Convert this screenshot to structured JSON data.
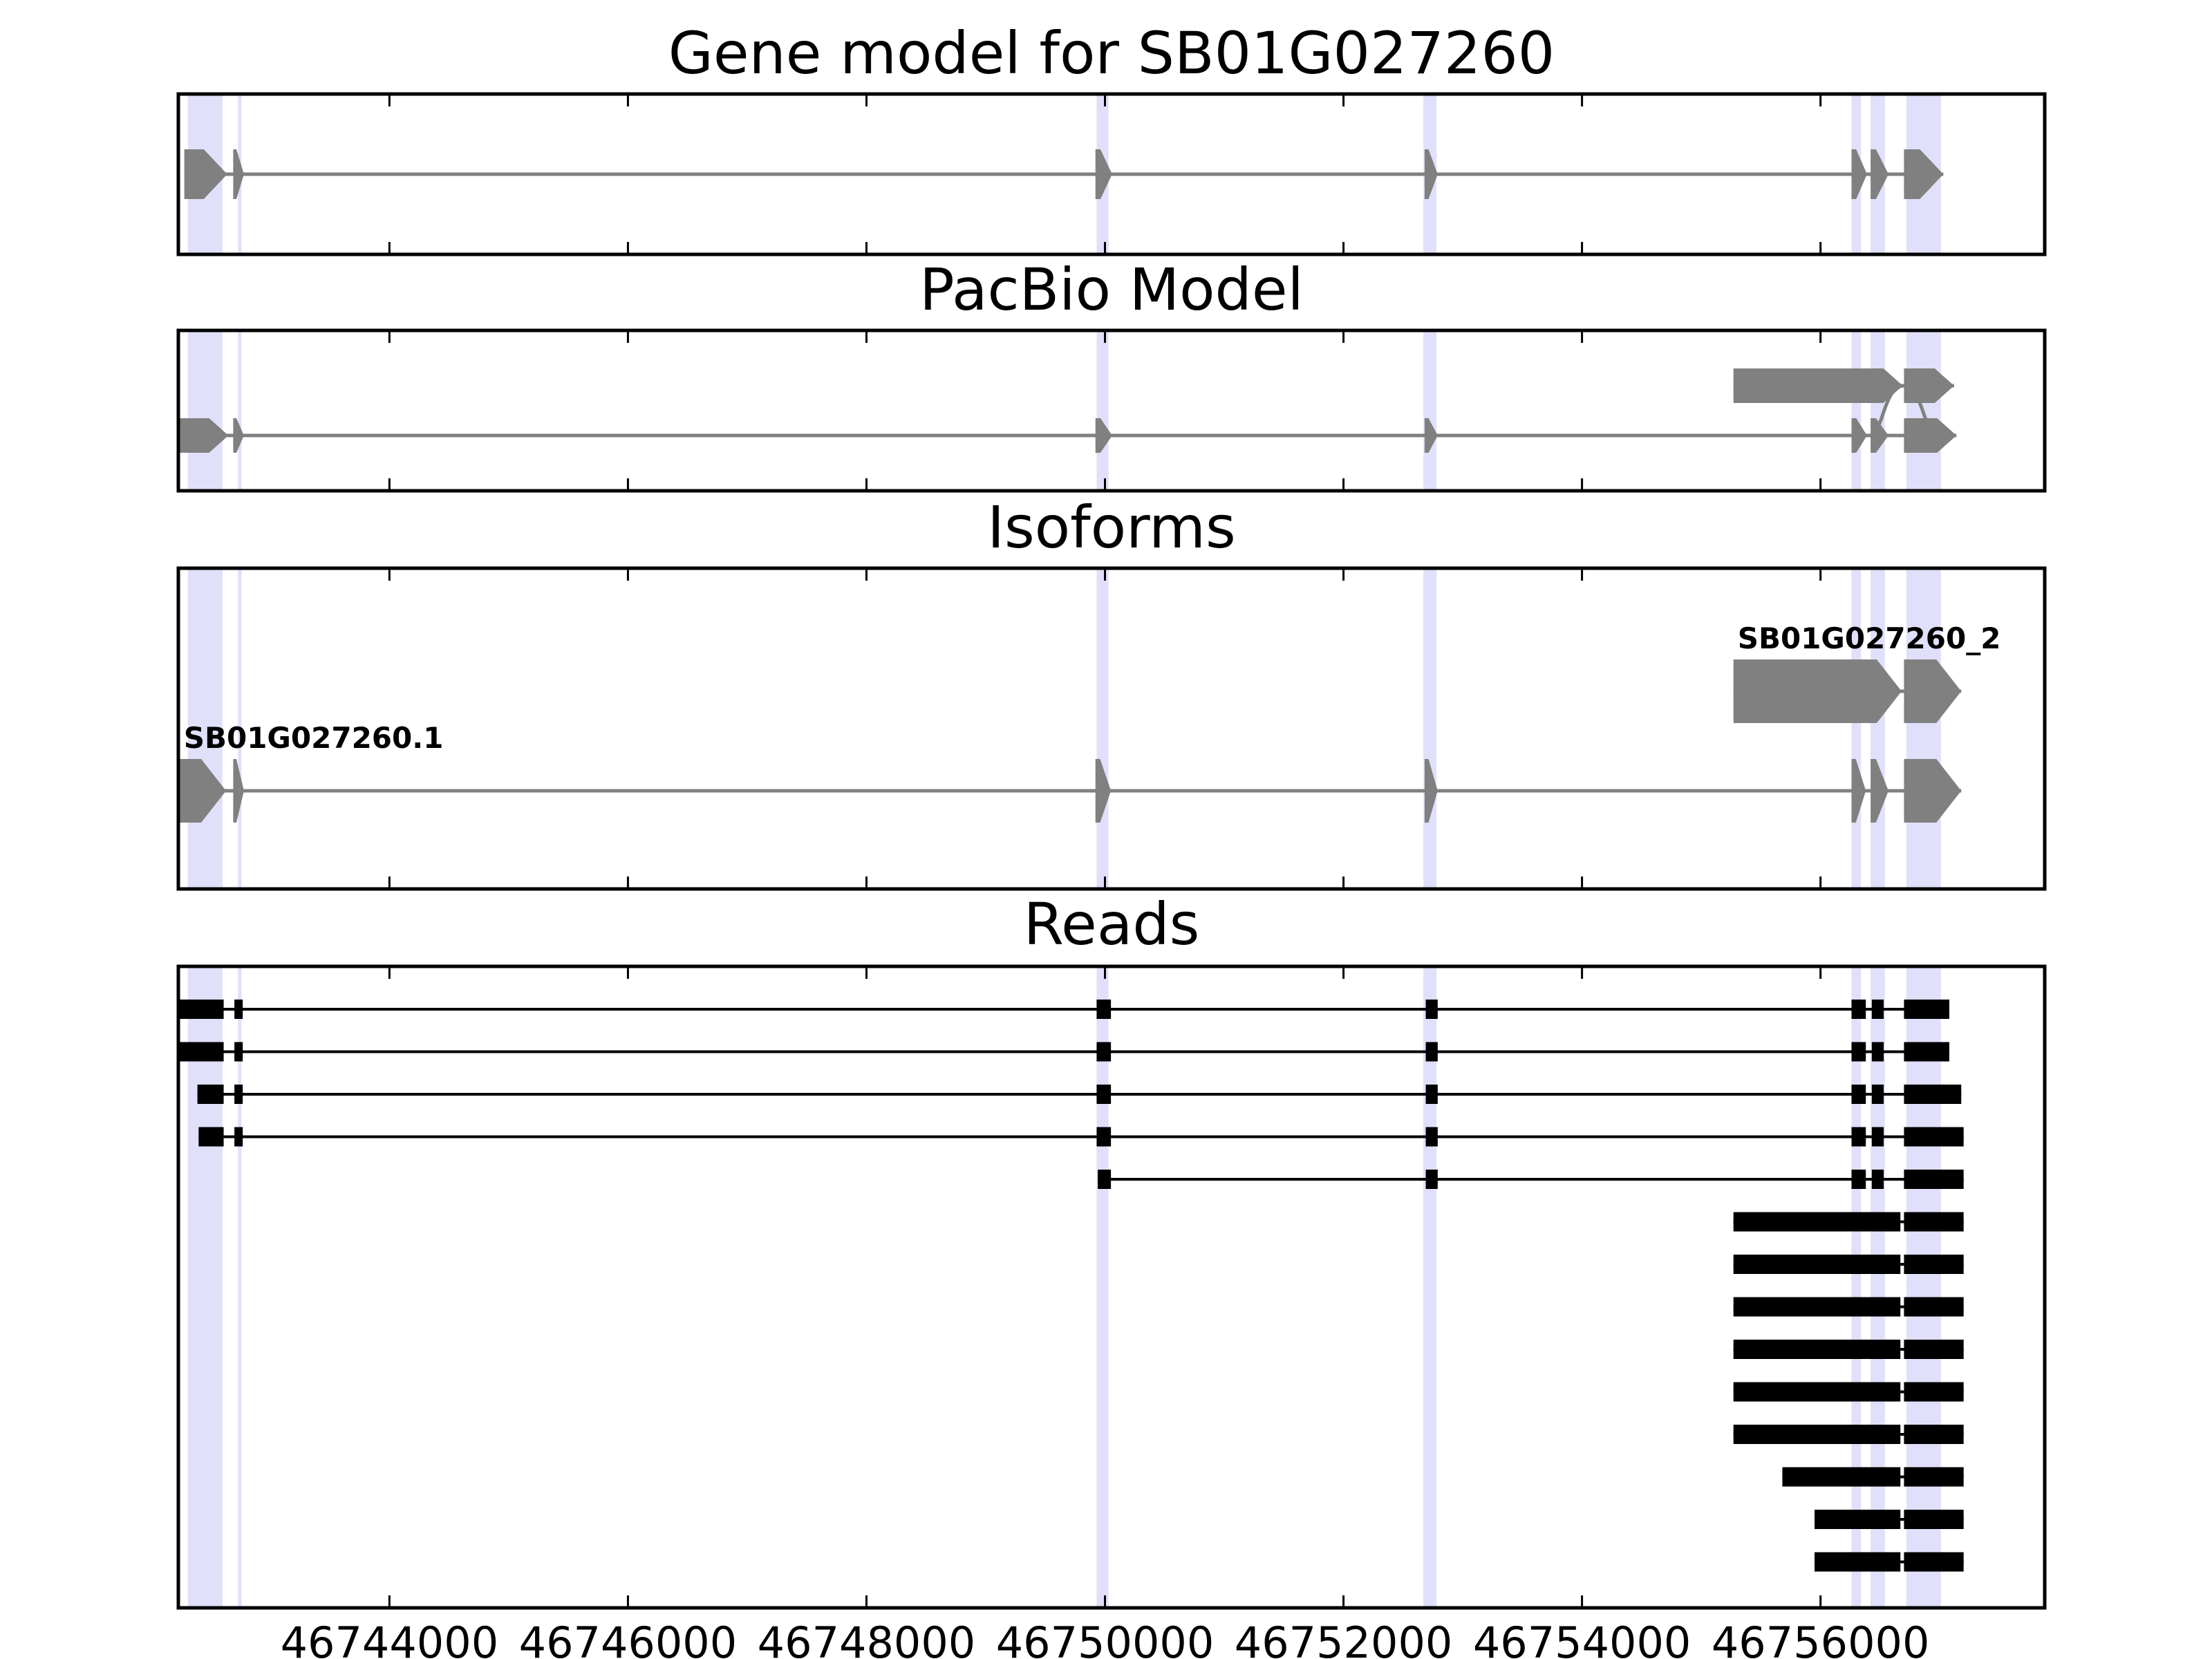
{
  "chart_data": {
    "type": "gene-structure",
    "x_range": [
      46742230,
      46757880
    ],
    "x_ticks": [
      {
        "value": 46744000,
        "label": "46744000"
      },
      {
        "value": 46746000,
        "label": "46746000"
      },
      {
        "value": 46748000,
        "label": "46748000"
      },
      {
        "value": 46750000,
        "label": "46750000"
      },
      {
        "value": 46752000,
        "label": "46752000"
      },
      {
        "value": 46754000,
        "label": "46754000"
      },
      {
        "value": 46756000,
        "label": "46756000"
      }
    ],
    "colors": {
      "model": "#808080",
      "read": "#000000",
      "exon_highlight": "#e0e0fa",
      "frame": "#000000"
    },
    "exon_regions": [
      [
        46742310,
        46742600
      ],
      [
        46742730,
        46742760
      ],
      [
        46749930,
        46750030
      ],
      [
        46752670,
        46752780
      ],
      [
        46756260,
        46756340
      ],
      [
        46756420,
        46756540
      ],
      [
        46756720,
        46757010
      ]
    ],
    "panels": [
      {
        "title": "Gene model for SB01G027260",
        "tracks": [
          {
            "exons": [
              [
                46742280,
                46742640
              ],
              [
                46742690,
                46742780
              ],
              [
                46749920,
                46750060
              ],
              [
                46752680,
                46752790
              ],
              [
                46756260,
                46756390
              ],
              [
                46756420,
                46756570
              ],
              [
                46756700,
                46757030
              ]
            ]
          }
        ]
      },
      {
        "title": "PacBio Model",
        "tracks": [
          {
            "exons": [
              [
                46755270,
                46756690
              ],
              [
                46756700,
                46757120
              ]
            ],
            "merge_to_track": 1
          },
          {
            "exons": [
              [
                46742240,
                46742650
              ],
              [
                46742690,
                46742780
              ],
              [
                46749920,
                46750060
              ],
              [
                46752680,
                46752790
              ],
              [
                46756260,
                46756390
              ],
              [
                46756420,
                46756570
              ],
              [
                46756700,
                46757140
              ]
            ]
          }
        ]
      },
      {
        "title": "Isoforms",
        "tracks": [
          {
            "label": "SB01G027260_2",
            "exons": [
              [
                46755270,
                46756680
              ],
              [
                46756420,
                46756550
              ],
              [
                46756700,
                46757180
              ]
            ]
          },
          {
            "label": "SB01G027260.1",
            "exons": [
              [
                46742240,
                46742630
              ],
              [
                46742690,
                46742780
              ],
              [
                46749920,
                46750050
              ],
              [
                46752680,
                46752790
              ],
              [
                46756260,
                46756380
              ],
              [
                46756420,
                46756570
              ],
              [
                46756700,
                46757180
              ]
            ]
          }
        ]
      },
      {
        "title": "Reads",
        "tracks": [
          {
            "exons": [
              [
                46742240,
                46742610
              ],
              [
                46742700,
                46742770
              ],
              [
                46749930,
                46750050
              ],
              [
                46752690,
                46752790
              ],
              [
                46756260,
                46756380
              ],
              [
                46756430,
                46756530
              ],
              [
                46756700,
                46757080
              ]
            ]
          },
          {
            "exons": [
              [
                46742240,
                46742610
              ],
              [
                46742700,
                46742770
              ],
              [
                46749930,
                46750050
              ],
              [
                46752690,
                46752790
              ],
              [
                46756260,
                46756380
              ],
              [
                46756430,
                46756530
              ],
              [
                46756700,
                46757080
              ]
            ]
          },
          {
            "exons": [
              [
                46742390,
                46742610
              ],
              [
                46742700,
                46742770
              ],
              [
                46749930,
                46750050
              ],
              [
                46752690,
                46752790
              ],
              [
                46756260,
                46756380
              ],
              [
                46756430,
                46756530
              ],
              [
                46756700,
                46757180
              ]
            ]
          },
          {
            "exons": [
              [
                46742400,
                46742610
              ],
              [
                46742700,
                46742770
              ],
              [
                46749930,
                46750050
              ],
              [
                46752690,
                46752790
              ],
              [
                46756260,
                46756380
              ],
              [
                46756430,
                46756530
              ],
              [
                46756700,
                46757200
              ]
            ]
          },
          {
            "exons": [
              [
                46749940,
                46750050
              ],
              [
                46752690,
                46752790
              ],
              [
                46756260,
                46756380
              ],
              [
                46756430,
                46756530
              ],
              [
                46756700,
                46757200
              ]
            ]
          },
          {
            "exons": [
              [
                46755270,
                46756670
              ],
              [
                46756430,
                46756530
              ],
              [
                46756700,
                46757200
              ]
            ]
          },
          {
            "exons": [
              [
                46755270,
                46756670
              ],
              [
                46756430,
                46756530
              ],
              [
                46756700,
                46757200
              ]
            ]
          },
          {
            "exons": [
              [
                46755270,
                46756670
              ],
              [
                46756430,
                46756530
              ],
              [
                46756700,
                46757200
              ]
            ]
          },
          {
            "exons": [
              [
                46755270,
                46756670
              ],
              [
                46756430,
                46756530
              ],
              [
                46756700,
                46757200
              ]
            ]
          },
          {
            "exons": [
              [
                46755270,
                46756670
              ],
              [
                46756430,
                46756530
              ],
              [
                46756700,
                46757200
              ]
            ]
          },
          {
            "exons": [
              [
                46755270,
                46756670
              ],
              [
                46756430,
                46756530
              ],
              [
                46756700,
                46757200
              ]
            ]
          },
          {
            "exons": [
              [
                46755680,
                46756670
              ],
              [
                46756430,
                46756530
              ],
              [
                46756700,
                46757200
              ]
            ]
          },
          {
            "exons": [
              [
                46755950,
                46756670
              ],
              [
                46756430,
                46756530
              ],
              [
                46756700,
                46757200
              ]
            ]
          },
          {
            "exons": [
              [
                46755950,
                46756670
              ],
              [
                46756430,
                46756530
              ],
              [
                46756700,
                46757200
              ]
            ]
          }
        ]
      }
    ]
  }
}
